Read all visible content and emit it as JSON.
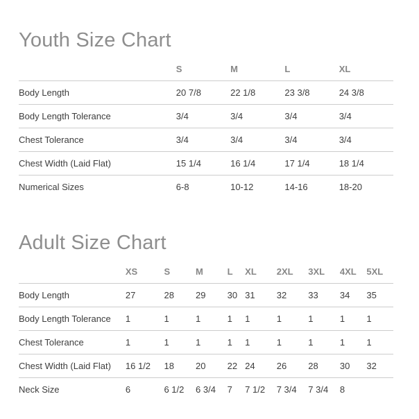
{
  "colors": {
    "background": "#ffffff",
    "title_text": "#8e8e8e",
    "column_header_text": "#878787",
    "body_text": "#3d3d3d",
    "divider_line": "#cccccc"
  },
  "charts": [
    {
      "id": "youth",
      "title": "Youth Size Chart",
      "columns": [
        "S",
        "M",
        "L",
        "XL"
      ],
      "rows": [
        {
          "label": "Body Length",
          "values": [
            "20 7/8",
            "22 1/8",
            "23 3/8",
            "24 3/8"
          ]
        },
        {
          "label": "Body Length Tolerance",
          "values": [
            "3/4",
            "3/4",
            "3/4",
            "3/4"
          ]
        },
        {
          "label": "Chest Tolerance",
          "values": [
            "3/4",
            "3/4",
            "3/4",
            "3/4"
          ]
        },
        {
          "label": "Chest Width (Laid Flat)",
          "values": [
            "15 1/4",
            "16 1/4",
            "17 1/4",
            "18 1/4"
          ]
        },
        {
          "label": "Numerical Sizes",
          "values": [
            "6-8",
            "10-12",
            "14-16",
            "18-20"
          ]
        }
      ]
    },
    {
      "id": "adult",
      "title": "Adult Size Chart",
      "columns": [
        "XS",
        "S",
        "M",
        "L",
        "XL",
        "2XL",
        "3XL",
        "4XL",
        "5XL"
      ],
      "rows": [
        {
          "label": "Body Length",
          "values": [
            "27",
            "28",
            "29",
            "30",
            "31",
            "32",
            "33",
            "34",
            "35"
          ]
        },
        {
          "label": "Body Length Tolerance",
          "values": [
            "1",
            "1",
            "1",
            "1",
            "1",
            "1",
            "1",
            "1",
            "1"
          ]
        },
        {
          "label": "Chest Tolerance",
          "values": [
            "1",
            "1",
            "1",
            "1",
            "1",
            "1",
            "1",
            "1",
            "1"
          ]
        },
        {
          "label": "Chest Width (Laid Flat)",
          "values": [
            "16 1/2",
            "18",
            "20",
            "22",
            "24",
            "26",
            "28",
            "30",
            "32"
          ]
        },
        {
          "label": "Neck Size",
          "values": [
            "6",
            "6 1/2",
            "6 3/4",
            "7",
            "7 1/2",
            "7 3/4",
            "7 3/4",
            "8",
            ""
          ]
        }
      ]
    }
  ]
}
